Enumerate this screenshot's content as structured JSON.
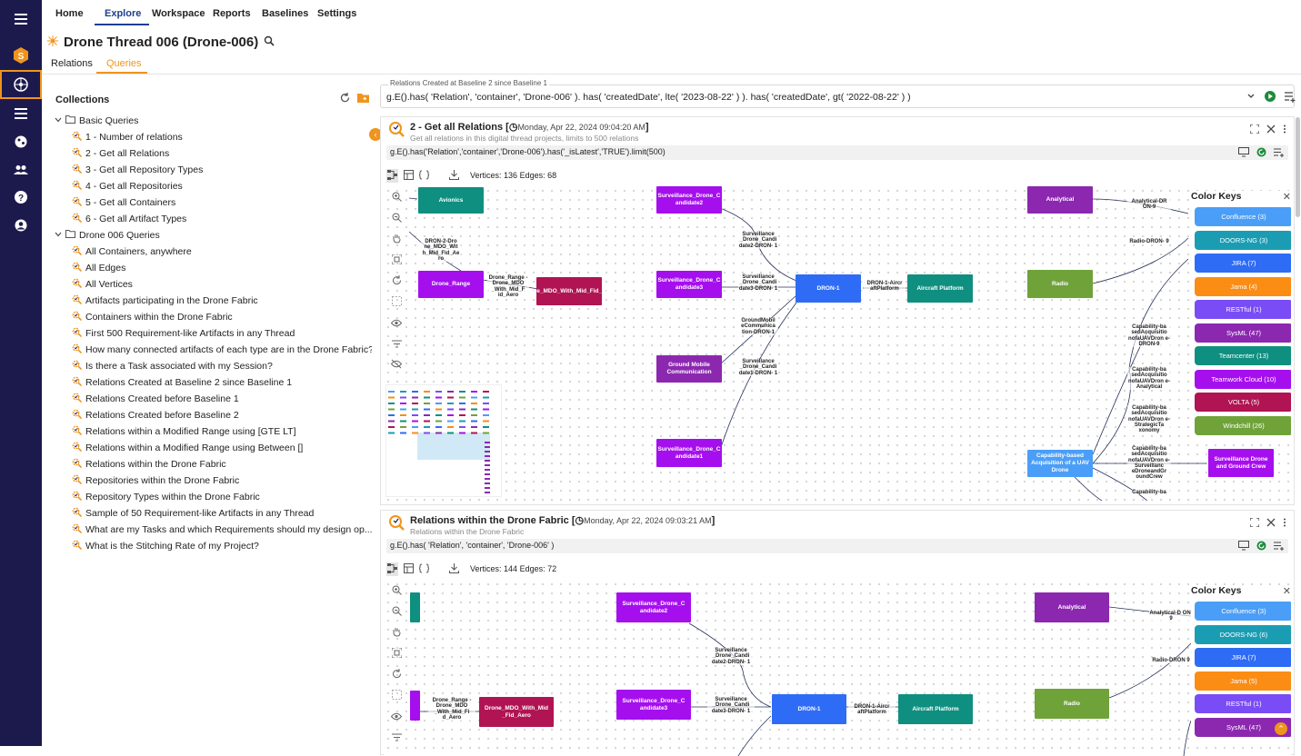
{
  "nav": {
    "tabs": [
      "Home",
      "Explore",
      "Workspace",
      "Reports",
      "Baselines",
      "Settings"
    ]
  },
  "page": {
    "title": "Drone Thread 006 (Drone-006)",
    "subtabs": [
      "Relations",
      "Queries"
    ]
  },
  "sidebar": {
    "header": "Collections",
    "groups": [
      {
        "label": "Basic Queries",
        "items": [
          "1 - Number of relations",
          "2 - Get all Relations",
          "3 - Get all Repository Types",
          "4 - Get all Repositories",
          "5 - Get all Containers",
          "6 - Get all Artifact Types"
        ]
      },
      {
        "label": "Drone 006 Queries",
        "items": [
          "All Containers, anywhere",
          "All Edges",
          "All Vertices",
          "Artifacts participating in the Drone Fabric",
          "Containers within the Drone Fabric",
          "First 500 Requirement-like Artifacts in any Thread",
          "How many connected artifacts of each type are in the Drone Fabric?",
          "Is there a Task associated with my Session?",
          "Relations Created at Baseline 2 since Baseline 1",
          "Relations Created before Baseline 1",
          "Relations Created before Baseline 2",
          "Relations within a Modified Range using [GTE LT]",
          "Relations within a Modified Range using Between []",
          "Relations within the Drone Fabric",
          "Repositories within the Drone Fabric",
          "Repository Types within the Drone Fabric",
          "Sample of 50 Requirement-like Artifacts in any Thread",
          "What are my Tasks and which Requirements should my design op...",
          "What is the Stitching Rate of my Project?"
        ]
      }
    ]
  },
  "query_editor": {
    "label": "Relations Created at Baseline 2 since Baseline 1",
    "text": "g.E().has( 'Relation', 'container', 'Drone-006' ).  has( 'createdDate', lte( '2023-08-22' ) ).  has( 'createdDate', gt( '2022-08-22' ) )"
  },
  "card1": {
    "title": "2 - Get all Relations",
    "date": "Monday, Apr 22, 2024 09:04:20 AM",
    "subtitle": "Get all relations in this digital thread projects, limits to 500 relations",
    "gremlin": "g.E().has('Relation','container','Drone-006').has('_isLatest','TRUE').limit(500)",
    "vertices_label": "Vertices:",
    "vertices": "136",
    "edges_label": "Edges:",
    "edges": "68",
    "nodes": {
      "avionics": "Avionics",
      "drone_range": "Drone_Range",
      "mdo": "Drone_MDO_With_Mid_Fid_Aero",
      "sc2": "Surveillance_Drone_C andidate2",
      "sc3": "Surveillance_Drone_C andidate3",
      "gmc": "Ground Mobile Communication",
      "sc1": "Surveillance_Drone_C andidate1",
      "dron1": "DRON-1",
      "aircraft": "Aircraft Platform",
      "analytical": "Analytical",
      "radio": "Radio",
      "cap": "Capability-based Acquisition of a UAV Drone",
      "sdgc": "Surveillance Drone and Ground Crew"
    },
    "edge_labels": {
      "e1": "DRON-2-Dro ne_MDO_Wit h_Mid_Fid_Ae ro",
      "e2": "Drone_Range -Drone_MDO _With_Mid_F id_Aero",
      "e3": "Surveillance _Drone_Candi date2-DRON- 1",
      "e4": "Surveillance _Drone_Candi date3-DRON- 1",
      "e5": "GroundMobil eCommunica tion-DRON-1",
      "e6": "Surveillance _Drone_Candi date1-DRON- 1",
      "e7": "DRON-1-Aircr aftPlatform",
      "e8": "Analytical-DR ON-9",
      "e9": "Radio-DRON- 9",
      "e10": "Capability-ba sedAcquisitio nofaUAVDron e-DRON-9",
      "e11": "Capability-ba sedAcquisitio nofaUAVDron e-Analytical",
      "e12": "Capability-ba sedAcquisitio nofaUAVDron e-StrategicTa xonomy",
      "e13": "Capability-ba sedAcquisitio nofaUAVDron e-Surveillanc eDroneandGr oundCrew",
      "e14": "Capability-ba"
    }
  },
  "card2": {
    "title": "Relations within the Drone Fabric",
    "date": "Monday, Apr 22, 2024 09:03:21 AM",
    "subtitle": "Relations within the Drone Fabric",
    "gremlin": "g.E().has( 'Relation', 'container', 'Drone-006' )",
    "vertices_label": "Vertices:",
    "vertices": "144",
    "edges_label": "Edges:",
    "edges": "72",
    "nodes": {
      "sc2": "Surveillance_Drone_C andidate2",
      "sc3": "Surveillance_Drone_C andidate3",
      "mdo": "Drone_MDO_With_Mid _Fid_Aero",
      "dron1": "DRON-1",
      "aircraft": "Aircraft Platform",
      "analytical": "Analytical",
      "radio": "Radio"
    },
    "edge_labels": {
      "e2": "Drone_Range -Drone_MDO _With_Mid_Fi d_Aero",
      "e3": "Surveillance _Drone_Candi date2-DRON- 1",
      "e4": "Surveillance _Drone_Candi date3-DRON- 1",
      "e7": "DRON-1-Aircr aftPlatform",
      "e8": "Analytical-D ON-9",
      "e9": "Radio-DRON 9"
    }
  },
  "color_keys": {
    "title": "Color Keys",
    "keys1": [
      {
        "label": "Confluence (3)",
        "color": "#4b9ef7"
      },
      {
        "label": "DOORS-NG (3)",
        "color": "#1a9db3"
      },
      {
        "label": "JIRA (7)",
        "color": "#2e6cf5"
      },
      {
        "label": "Jama (4)",
        "color": "#fb8c14"
      },
      {
        "label": "RESTful (1)",
        "color": "#7a4cf5"
      },
      {
        "label": "SysML (47)",
        "color": "#8c28b0"
      },
      {
        "label": "Teamcenter (13)",
        "color": "#0f8f80"
      },
      {
        "label": "Teamwork Cloud (10)",
        "color": "#a50fee"
      },
      {
        "label": "VOLTA (5)",
        "color": "#b01452"
      },
      {
        "label": "Windchill (26)",
        "color": "#6fa33a"
      }
    ],
    "keys2": [
      {
        "label": "Confluence (3)",
        "color": "#4b9ef7"
      },
      {
        "label": "DOORS-NG (6)",
        "color": "#1a9db3"
      },
      {
        "label": "JIRA (7)",
        "color": "#2e6cf5"
      },
      {
        "label": "Jama (5)",
        "color": "#fb8c14"
      },
      {
        "label": "RESTful (1)",
        "color": "#7a4cf5"
      },
      {
        "label": "SysML (47)",
        "color": "#8c28b0"
      }
    ]
  }
}
